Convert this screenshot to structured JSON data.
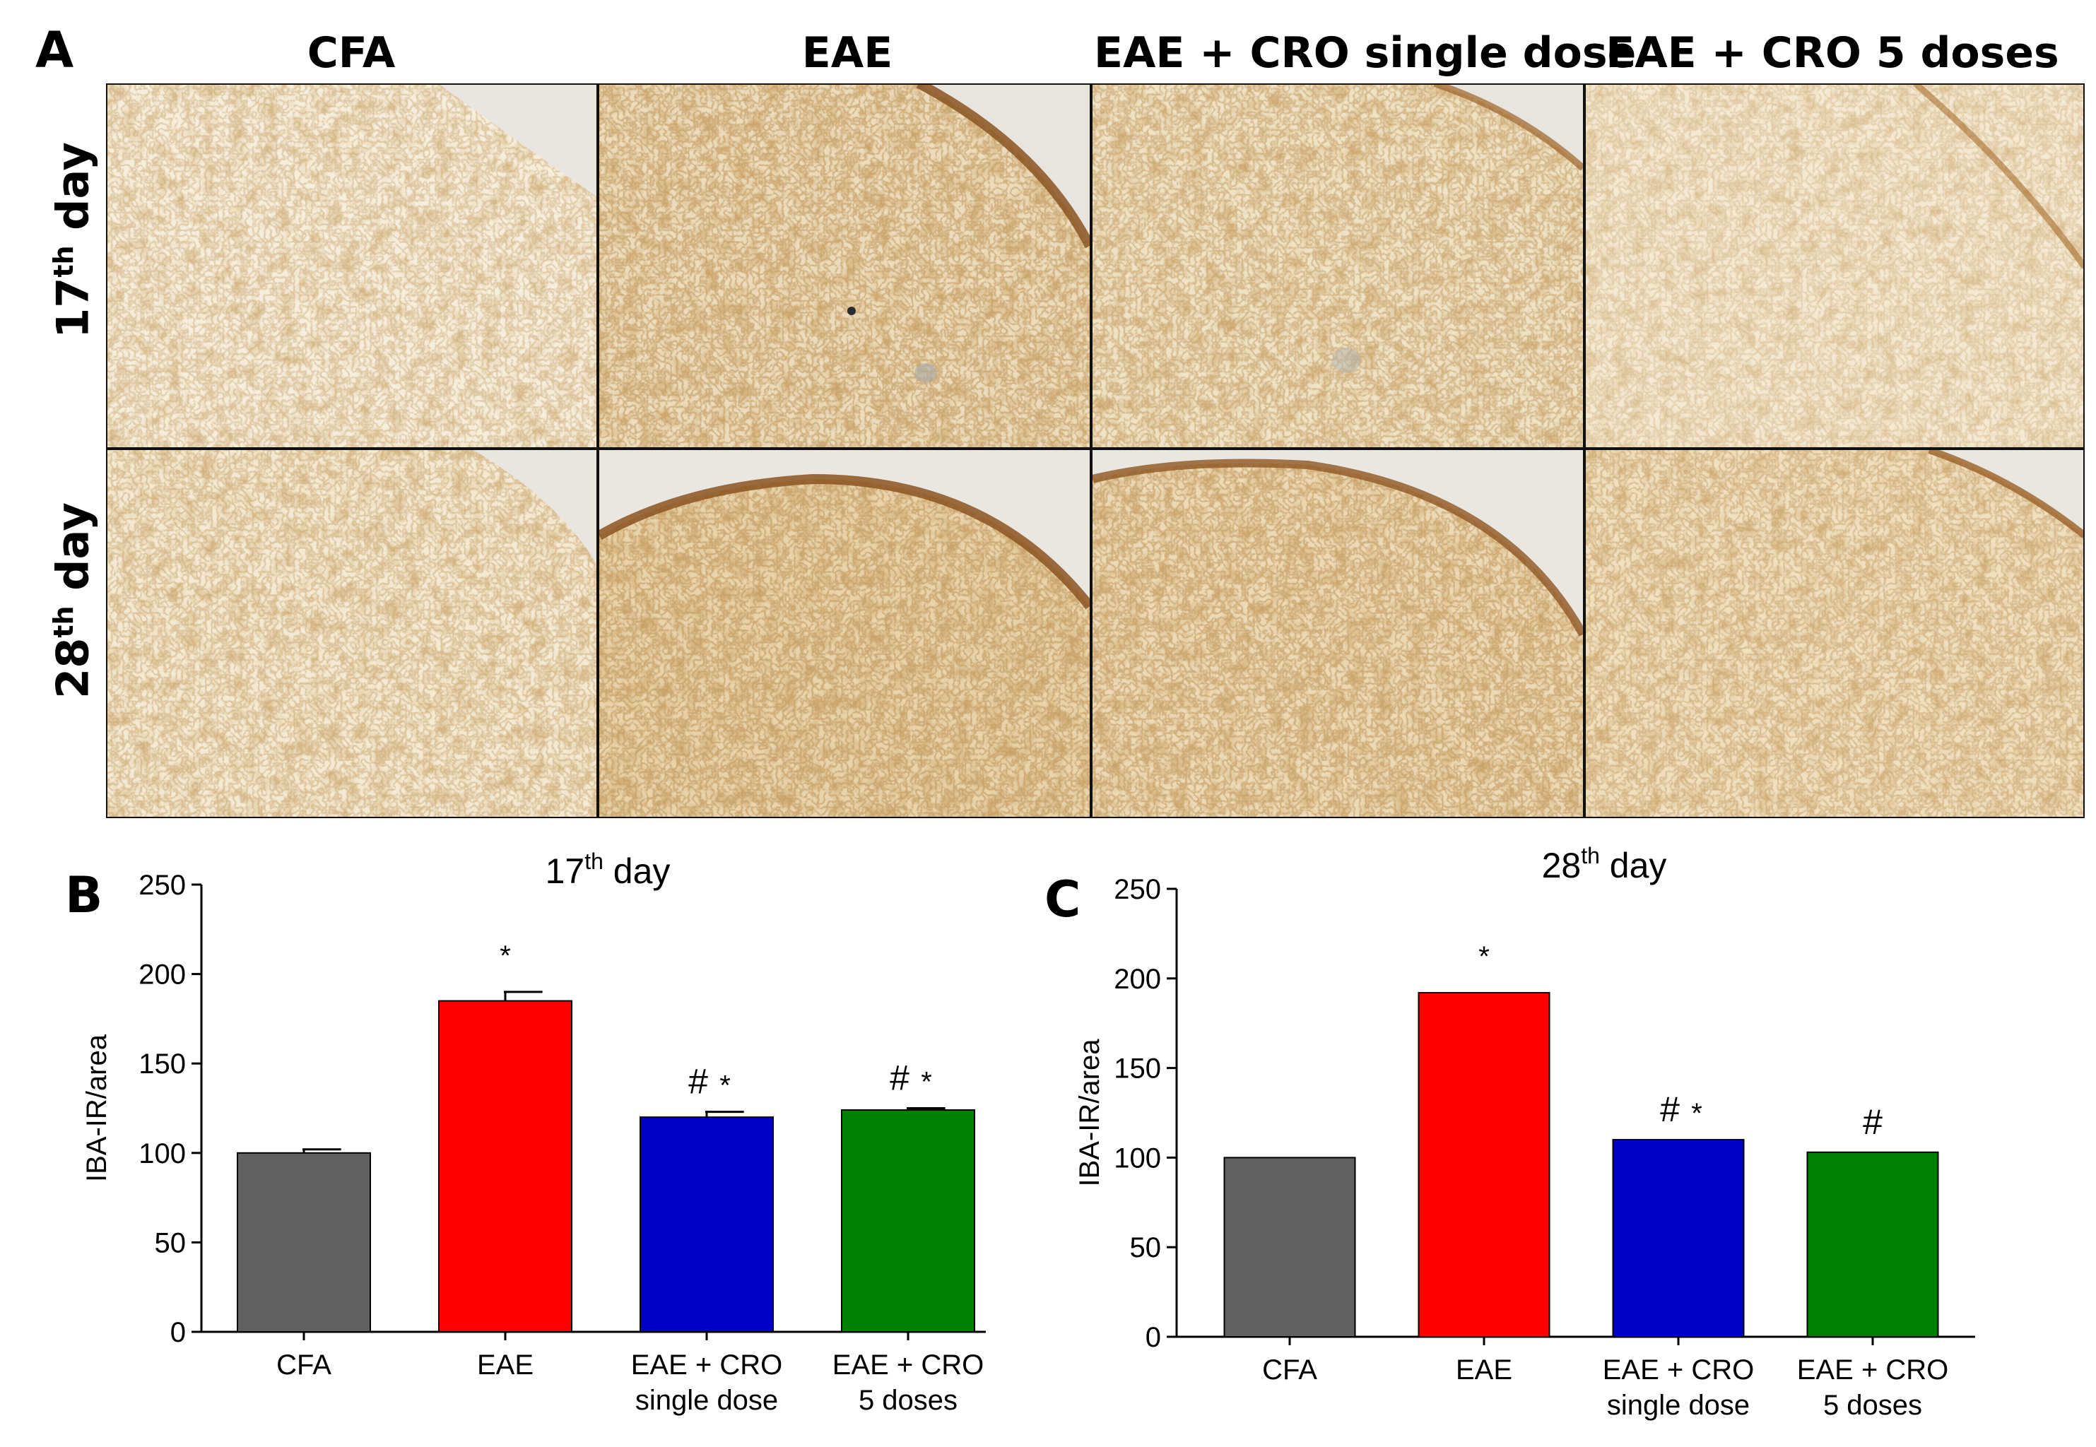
{
  "figure": {
    "panel_a": {
      "label": "A",
      "columns": [
        "CFA",
        "EAE",
        "EAE + CRO single dose",
        "EAE + CRO 5 doses"
      ],
      "rows": [
        {
          "num": "17",
          "sup": "th",
          "word": "day"
        },
        {
          "num": "28",
          "sup": "th",
          "word": "day"
        }
      ],
      "stain_colors": {
        "background": "#f3ead6",
        "stain": "#a8702c",
        "dark": "#7a4a1a"
      }
    },
    "panel_b_label": "B",
    "panel_c_label": "C"
  },
  "chart_data": [
    {
      "type": "bar",
      "panel": "B",
      "title": {
        "num": "17",
        "sup": "th",
        "word": "day"
      },
      "ylabel": "IBA-IR/area",
      "ylim": [
        0,
        250
      ],
      "yticks": [
        0,
        50,
        100,
        150,
        200,
        250
      ],
      "categories": [
        [
          "CFA"
        ],
        [
          "EAE"
        ],
        [
          "EAE + CRO",
          "single dose"
        ],
        [
          "EAE + CRO",
          "5 doses"
        ]
      ],
      "values": [
        100,
        185,
        120,
        124
      ],
      "errors": [
        2,
        5,
        3,
        1
      ],
      "colors": [
        "#606060",
        "#ff0000",
        "#0000c8",
        "#008000"
      ],
      "annotations": [
        "",
        "*",
        "#*",
        "#*"
      ]
    },
    {
      "type": "bar",
      "panel": "C",
      "title": {
        "num": "28",
        "sup": "th",
        "word": "day"
      },
      "ylabel": "IBA-IR/area",
      "ylim": [
        0,
        250
      ],
      "yticks": [
        0,
        50,
        100,
        150,
        200,
        250
      ],
      "categories": [
        [
          "CFA"
        ],
        [
          "EAE"
        ],
        [
          "EAE + CRO",
          "single dose"
        ],
        [
          "EAE + CRO",
          "5 doses"
        ]
      ],
      "values": [
        100,
        192,
        110,
        103
      ],
      "errors": [
        0,
        0,
        0,
        0
      ],
      "colors": [
        "#606060",
        "#ff0000",
        "#0000c8",
        "#008000"
      ],
      "annotations": [
        "",
        "*",
        "#*",
        "#"
      ]
    }
  ]
}
